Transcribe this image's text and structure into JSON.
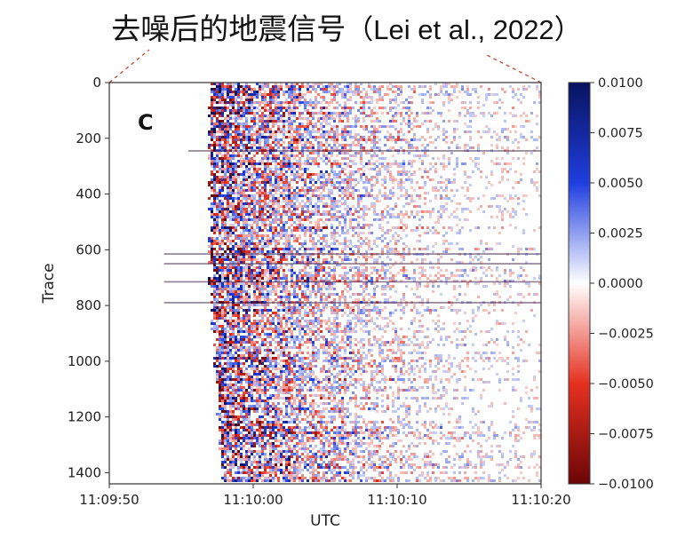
{
  "title": {
    "main": "去噪后的地震信号",
    "citation": "（Lei et al., 2022）"
  },
  "chart_data": {
    "type": "heatmap",
    "panel_label": "C",
    "xlabel": "UTC",
    "ylabel": "Trace",
    "x_ticks": [
      "11:09:50",
      "11:10:00",
      "11:10:10",
      "11:10:20"
    ],
    "x_range": [
      "11:09:50",
      "11:10:20"
    ],
    "y_ticks": [
      0,
      200,
      400,
      600,
      800,
      1000,
      1200,
      1400
    ],
    "y_range": [
      0,
      1440
    ],
    "y_inverted": true,
    "colormap": "seismic_r",
    "colorbar": {
      "ticks": [
        "0.0100",
        "0.0075",
        "0.0050",
        "0.0025",
        "0.0000",
        "−0.0025",
        "−0.0050",
        "−0.0075",
        "−0.0100"
      ],
      "range": [
        -0.01,
        0.01
      ],
      "colors": {
        "max": "#08135f",
        "high": "#1f3ee0",
        "zero": "#ffffff",
        "low": "#e53020",
        "min": "#6b0606"
      }
    },
    "signal_onset": "11:09:57",
    "strong_horizontal_traces": [
      245,
      615,
      650,
      715,
      790
    ]
  }
}
